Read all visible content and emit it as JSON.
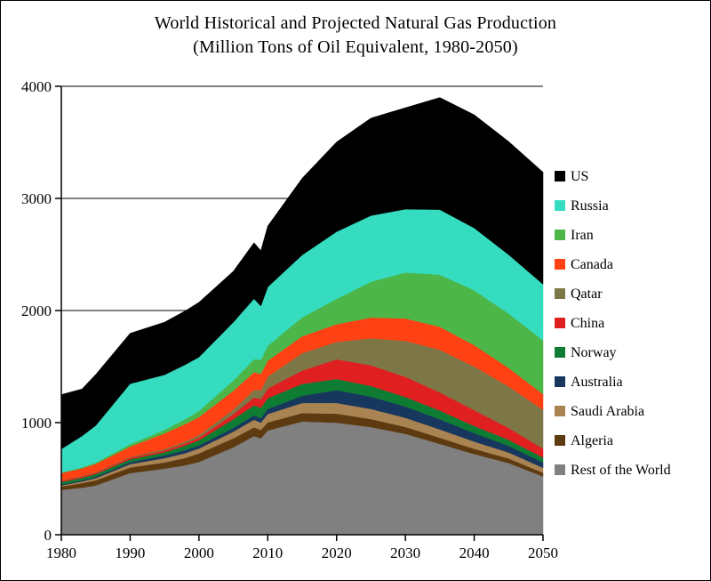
{
  "title": {
    "line1": "World Historical and Projected Natural Gas Production",
    "line2": "(Million Tons of Oil Equivalent, 1980-2050)"
  },
  "chart_data": {
    "type": "area",
    "stacked": true,
    "title": "World Historical and Projected Natural Gas Production (Million Tons of Oil Equivalent, 1980-2050)",
    "xlabel": "",
    "ylabel": "",
    "xlim": [
      1980,
      2050
    ],
    "ylim": [
      0,
      4000
    ],
    "x_ticks": [
      1980,
      1990,
      2000,
      2010,
      2020,
      2030,
      2040,
      2050
    ],
    "y_ticks": [
      0,
      1000,
      2000,
      3000,
      4000
    ],
    "grid": "horizontal",
    "legend_position": "right",
    "x": [
      1980,
      1983,
      1985,
      1990,
      1995,
      1998,
      2000,
      2005,
      2008,
      2009,
      2010,
      2015,
      2020,
      2025,
      2030,
      2035,
      2040,
      2045,
      2050
    ],
    "series": [
      {
        "name": "US",
        "color": "#000000",
        "values": [
          485,
          420,
          455,
          450,
          470,
          480,
          490,
          455,
          500,
          495,
          545,
          685,
          800,
          870,
          905,
          1000,
          1010,
          1010,
          1000
        ]
      },
      {
        "name": "Russia",
        "color": "#35DCC0",
        "values": [
          210,
          280,
          330,
          540,
          490,
          485,
          480,
          520,
          540,
          480,
          525,
          555,
          600,
          590,
          565,
          580,
          555,
          525,
          500
        ]
      },
      {
        "name": "Iran",
        "color": "#4CB648",
        "values": [
          4,
          8,
          12,
          21,
          32,
          45,
          55,
          92,
          115,
          125,
          133,
          170,
          225,
          320,
          410,
          465,
          490,
          485,
          480
        ]
      },
      {
        "name": "Canada",
        "color": "#FF4113",
        "values": [
          65,
          68,
          75,
          92,
          140,
          155,
          160,
          168,
          158,
          145,
          142,
          150,
          158,
          185,
          200,
          205,
          190,
          165,
          140
        ]
      },
      {
        "name": "Qatar",
        "color": "#7D7748",
        "values": [
          4,
          5,
          5,
          7,
          12,
          17,
          22,
          40,
          68,
          80,
          105,
          155,
          155,
          240,
          320,
          380,
          390,
          370,
          345
        ]
      },
      {
        "name": "China",
        "color": "#E02020",
        "values": [
          12,
          11,
          11,
          14,
          16,
          20,
          24,
          45,
          70,
          77,
          87,
          120,
          175,
          185,
          180,
          162,
          140,
          105,
          80
        ]
      },
      {
        "name": "Norway",
        "color": "#0F7C33",
        "values": [
          22,
          23,
          24,
          25,
          28,
          40,
          45,
          78,
          90,
          93,
          96,
          105,
          100,
          95,
          85,
          78,
          65,
          54,
          44
        ]
      },
      {
        "name": "Australia",
        "color": "#17375E",
        "values": [
          8,
          10,
          12,
          18,
          25,
          28,
          28,
          33,
          38,
          40,
          45,
          65,
          115,
          110,
          100,
          90,
          75,
          60,
          47
        ]
      },
      {
        "name": "Saudi Arabia",
        "color": "#AA8352",
        "values": [
          10,
          15,
          20,
          30,
          38,
          42,
          45,
          60,
          68,
          66,
          75,
          90,
          95,
          90,
          82,
          75,
          64,
          54,
          45
        ]
      },
      {
        "name": "Algeria",
        "color": "#5E3A10",
        "values": [
          30,
          40,
          45,
          50,
          55,
          65,
          75,
          80,
          78,
          74,
          72,
          75,
          80,
          72,
          62,
          55,
          47,
          40,
          33
        ]
      },
      {
        "name": "Rest of the World",
        "color": "#808080",
        "values": [
          400,
          420,
          440,
          550,
          590,
          620,
          650,
          780,
          880,
          860,
          930,
          1010,
          1000,
          960,
          900,
          810,
          720,
          640,
          520
        ]
      }
    ]
  }
}
